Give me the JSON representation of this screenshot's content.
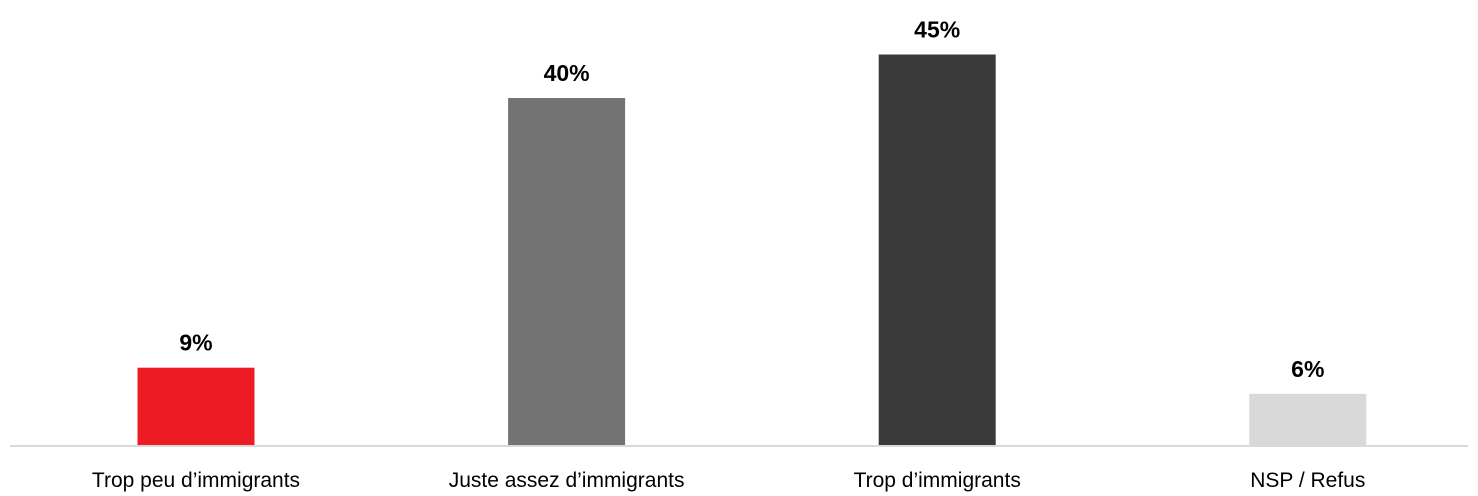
{
  "chart_data": {
    "type": "bar",
    "title": "",
    "xlabel": "",
    "ylabel": "",
    "ylim": [
      0,
      48
    ],
    "grid": false,
    "legend": "none",
    "categories": [
      "Trop peu d’immigrants",
      "Juste assez d’immigrants",
      "Trop d’immigrants",
      "NSP / Refus"
    ],
    "values": [
      9,
      40,
      45,
      6
    ],
    "value_labels": [
      "9%",
      "40%",
      "45%",
      "6%"
    ],
    "colors": [
      "#ED1C24",
      "#737373",
      "#3A3A3A",
      "#D9D9D9"
    ],
    "axis_color": "#D9D9D9"
  }
}
